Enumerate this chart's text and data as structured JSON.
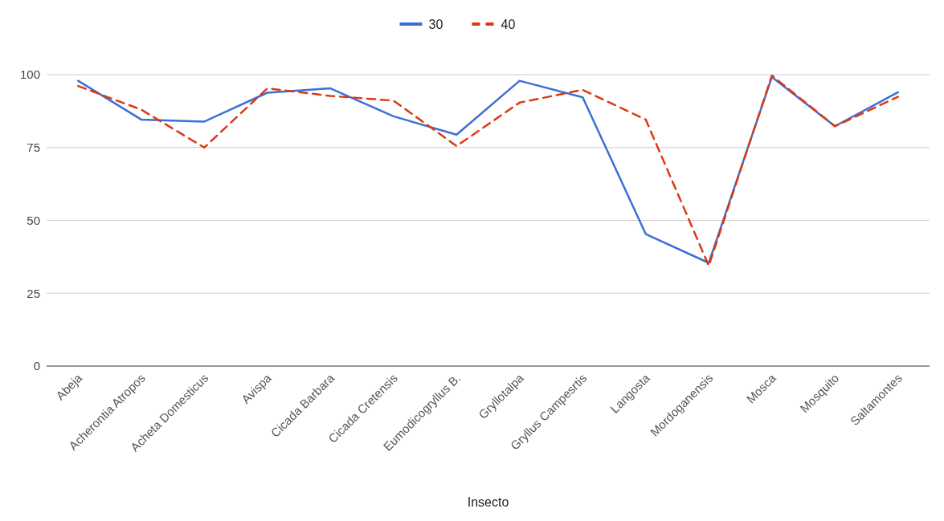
{
  "chart_data": {
    "type": "line",
    "xlabel": "Insecto",
    "categories": [
      "Abeja",
      "Acherontia Atropos",
      "Acheta Domesticus",
      "Avispa",
      "Cicada Barbara",
      "Cicada Cretensis",
      "Eumodicogryllus B.",
      "Gryllotalpa",
      "Gryllus Campesrtis",
      "Langosta",
      "Mordoganensis",
      "Mosca",
      "Mosquito",
      "Saltamontes"
    ],
    "series": [
      {
        "name": "30",
        "color": "#3b6fd6",
        "line_style": "solid",
        "values": [
          97.9,
          84.6,
          83.9,
          93.8,
          95.3,
          85.7,
          79.4,
          97.9,
          92.2,
          45.3,
          35.4,
          99.2,
          82.3,
          94
        ]
      },
      {
        "name": "40",
        "color": "#dc3912",
        "line_style": "dashed",
        "values": [
          96.1,
          88,
          75,
          95.3,
          92.7,
          91.1,
          75.5,
          90.4,
          94.8,
          84.6,
          34.4,
          99.7,
          82.3,
          92.4
        ]
      }
    ],
    "ylim": [
      0,
      100
    ],
    "yticks": [
      0,
      25,
      50,
      75,
      100
    ],
    "grid": "y",
    "legend": "top",
    "marker": "none"
  }
}
